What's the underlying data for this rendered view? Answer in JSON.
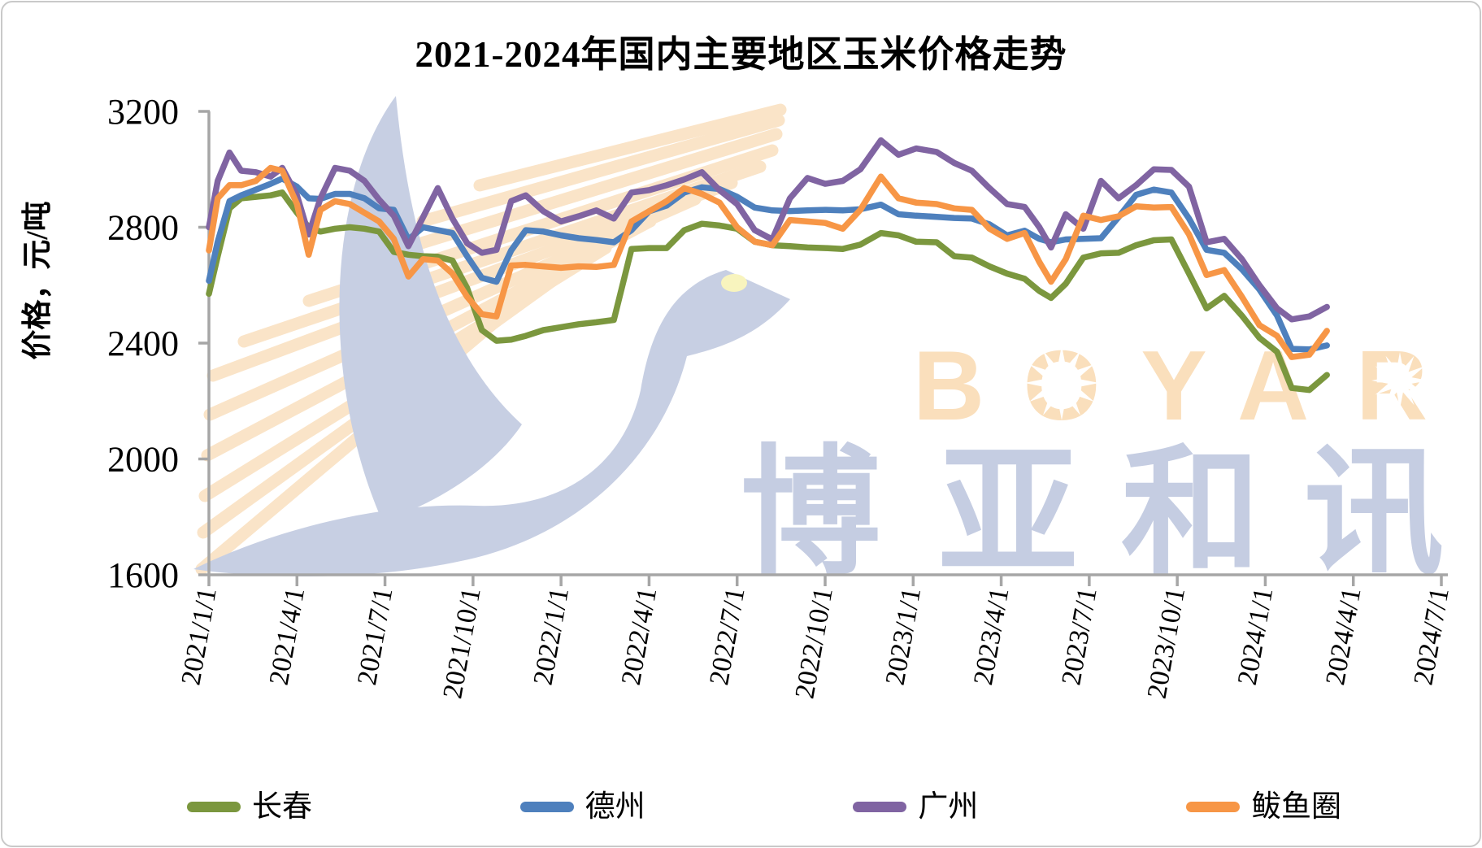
{
  "title": "2021-2024年国内主要地区玉米价格走势",
  "y_axis_title": "价格，元/吨",
  "watermark": {
    "brand_en_letters": [
      "B",
      "O",
      "Y",
      "A",
      "R"
    ],
    "brand_cn_chars": [
      "博",
      "亚",
      "和",
      "讯"
    ]
  },
  "colors": {
    "axis": "#a6a6a6",
    "changchun": "#7b973e",
    "dezhou": "#4e80bd",
    "guangzhou": "#8064a2",
    "bayuquan": "#f79646",
    "watermark_bird": "#c7cfe3",
    "watermark_stripe": "#fae4c8",
    "watermark_en": "#fadfbc",
    "watermark_cn": "#c5cde2",
    "watermark_eye": "#f8f4be",
    "watermark_star": "#ffffff"
  },
  "chart_data": {
    "type": "line",
    "title": "2021-2024年国内主要地区玉米价格走势",
    "xlabel": "",
    "ylabel": "价格，元/吨",
    "ylim": [
      1600,
      3200
    ],
    "y_ticks": [
      3200,
      2800,
      2400,
      2000,
      1600
    ],
    "x_tick_labels": [
      "2021/1/1",
      "2021/4/1",
      "2021/7/1",
      "2021/10/1",
      "2022/1/1",
      "2022/4/1",
      "2022/7/1",
      "2022/10/1",
      "2023/1/1",
      "2023/4/1",
      "2023/7/1",
      "2023/10/1",
      "2024/1/1",
      "2024/4/1",
      "2024/7/1"
    ],
    "x_unit": "months since 2021/1/1",
    "x_range": [
      0,
      42
    ],
    "grid": false,
    "legend_position": "bottom",
    "x": [
      0,
      0.3,
      0.7,
      1.1,
      1.6,
      2.1,
      2.5,
      3.0,
      3.4,
      3.8,
      4.3,
      4.8,
      5.3,
      5.8,
      6.3,
      6.8,
      7.3,
      7.8,
      8.3,
      8.8,
      9.3,
      9.8,
      10.3,
      10.8,
      11.4,
      12.0,
      12.6,
      13.2,
      13.8,
      14.4,
      15.0,
      15.6,
      16.2,
      16.8,
      17.4,
      18.0,
      18.6,
      19.2,
      19.8,
      20.4,
      21.0,
      21.6,
      22.2,
      22.9,
      23.5,
      24.1,
      24.8,
      25.4,
      26.0,
      26.6,
      27.2,
      27.8,
      28.3,
      28.7,
      29.2,
      29.8,
      30.4,
      31.0,
      31.6,
      32.2,
      32.8,
      33.4,
      34.0,
      34.6,
      35.2,
      35.8,
      36.4,
      36.9,
      37.5,
      38.1
    ],
    "series": [
      {
        "key": "changchun",
        "name": "长春",
        "color": "#7b973e",
        "values": [
          2570,
          2700,
          2865,
          2900,
          2905,
          2910,
          2920,
          2850,
          2800,
          2785,
          2795,
          2800,
          2795,
          2785,
          2715,
          2705,
          2700,
          2698,
          2685,
          2590,
          2445,
          2408,
          2412,
          2425,
          2445,
          2455,
          2465,
          2472,
          2480,
          2725,
          2728,
          2728,
          2790,
          2812,
          2806,
          2795,
          2750,
          2738,
          2735,
          2730,
          2728,
          2725,
          2740,
          2780,
          2772,
          2750,
          2748,
          2700,
          2695,
          2665,
          2640,
          2622,
          2580,
          2556,
          2605,
          2695,
          2710,
          2712,
          2738,
          2755,
          2758,
          2640,
          2520,
          2563,
          2495,
          2418,
          2370,
          2245,
          2238,
          2290
        ]
      },
      {
        "key": "dezhou",
        "name": "德州",
        "color": "#4e80bd",
        "values": [
          2615,
          2750,
          2890,
          2910,
          2930,
          2950,
          2968,
          2940,
          2900,
          2898,
          2915,
          2915,
          2900,
          2865,
          2860,
          2758,
          2800,
          2790,
          2780,
          2700,
          2625,
          2612,
          2720,
          2790,
          2785,
          2772,
          2762,
          2756,
          2748,
          2790,
          2855,
          2875,
          2920,
          2938,
          2932,
          2905,
          2868,
          2858,
          2856,
          2858,
          2860,
          2858,
          2862,
          2878,
          2845,
          2840,
          2836,
          2832,
          2830,
          2810,
          2772,
          2788,
          2760,
          2748,
          2758,
          2760,
          2762,
          2835,
          2912,
          2930,
          2920,
          2830,
          2722,
          2712,
          2655,
          2585,
          2495,
          2380,
          2378,
          2392
        ]
      },
      {
        "key": "guangzhou",
        "name": "广州",
        "color": "#8064a2",
        "values": [
          2800,
          2960,
          3058,
          2995,
          2990,
          2975,
          3005,
          2910,
          2775,
          2900,
          3005,
          2995,
          2960,
          2895,
          2840,
          2735,
          2835,
          2935,
          2830,
          2745,
          2712,
          2722,
          2890,
          2910,
          2855,
          2820,
          2838,
          2858,
          2830,
          2920,
          2928,
          2945,
          2965,
          2990,
          2928,
          2880,
          2790,
          2758,
          2900,
          2970,
          2950,
          2960,
          3000,
          3100,
          3050,
          3072,
          3060,
          3022,
          2995,
          2935,
          2880,
          2870,
          2800,
          2730,
          2845,
          2795,
          2960,
          2900,
          2945,
          3000,
          2998,
          2940,
          2748,
          2760,
          2690,
          2600,
          2520,
          2482,
          2492,
          2525
        ]
      },
      {
        "key": "bayuquan",
        "name": "鲅鱼圈",
        "color": "#f79646",
        "values": [
          2720,
          2900,
          2945,
          2945,
          2960,
          3005,
          2995,
          2880,
          2705,
          2860,
          2890,
          2880,
          2850,
          2820,
          2760,
          2630,
          2690,
          2685,
          2640,
          2560,
          2500,
          2492,
          2668,
          2670,
          2665,
          2660,
          2665,
          2663,
          2670,
          2820,
          2855,
          2890,
          2935,
          2915,
          2885,
          2800,
          2750,
          2738,
          2825,
          2820,
          2815,
          2795,
          2860,
          2975,
          2900,
          2885,
          2880,
          2865,
          2860,
          2795,
          2760,
          2780,
          2680,
          2612,
          2690,
          2840,
          2825,
          2838,
          2872,
          2868,
          2870,
          2775,
          2635,
          2652,
          2560,
          2462,
          2425,
          2352,
          2360,
          2442
        ]
      }
    ]
  }
}
